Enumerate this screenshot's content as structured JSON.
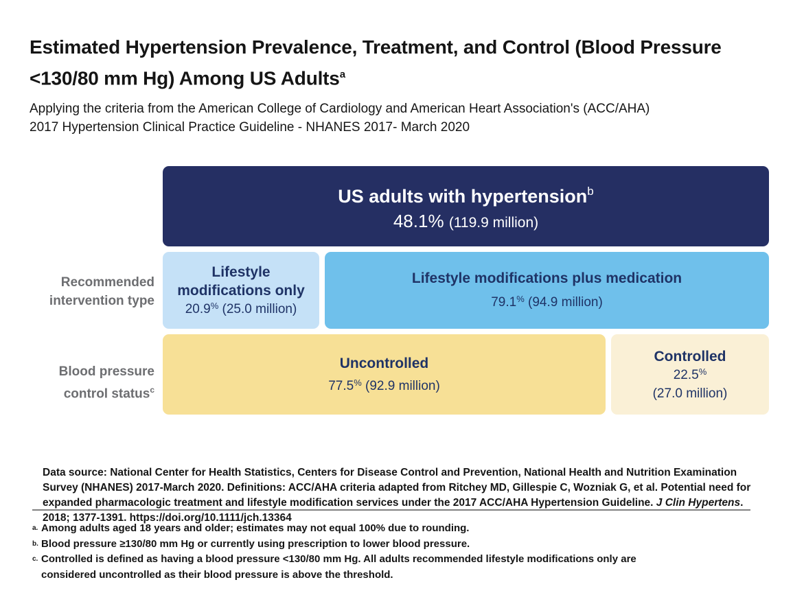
{
  "page": {
    "title": "Estimated Hypertension Prevalence, Treatment, and Control (Blood Pressure <130/80 mm Hg) Among US Adults",
    "title_footnote_mark": "a",
    "subtitle": "Applying the criteria from the American College of Cardiology and American Heart Association's (ACC/AHA) 2017 Hypertension Clinical Practice Guideline - NHANES 2017- March 2020"
  },
  "glyphs": {
    "percent": "%"
  },
  "chart_data": {
    "type": "bar",
    "variant": "hierarchical-breakdown",
    "title": "Estimated Hypertension Prevalence, Treatment, and Control (Blood Pressure <130/80 mm Hg) Among US Adults",
    "population_unit": "US adults",
    "levels": [
      {
        "label": "",
        "segments": [
          {
            "name": "US adults with hypertension",
            "footnote_mark": "b",
            "percent": 48.1,
            "millions": 119.9,
            "pct_display": "48.1",
            "value_display": "(119.9 million)",
            "color": "#252F63"
          }
        ]
      },
      {
        "label": "Recommended intervention type",
        "segments": [
          {
            "name": "Lifestyle modifications only",
            "percent": 20.9,
            "millions": 25.0,
            "pct_display": "20.9",
            "value_display": "(25.0 million)",
            "color": "#C5E1F7"
          },
          {
            "name": "Lifestyle modifications plus medication",
            "percent": 79.1,
            "millions": 94.9,
            "pct_display": "79.1",
            "value_display": "(94.9 million)",
            "color": "#6FC0EB"
          }
        ]
      },
      {
        "label": "Blood pressure control status",
        "footnote_mark": "c",
        "segments": [
          {
            "name": "Uncontrolled",
            "percent": 77.5,
            "millions": 92.9,
            "pct_display": "77.5",
            "value_display": "(92.9 million)",
            "color": "#F7E096"
          },
          {
            "name": "Controlled",
            "percent": 22.5,
            "millions": 27.0,
            "pct_display": "22.5",
            "value_display": "(27.0 million)",
            "color": "#FAF0D6"
          }
        ]
      }
    ],
    "colors": {
      "box_navy": "#252F63",
      "box_light_blue": "#C5E1F7",
      "box_medium_blue": "#6FC0EB",
      "box_yellow": "#F7E096",
      "box_cream": "#FAF0D6",
      "text_navy": "#1F3366",
      "row_label_gray": "#6D6E71"
    }
  },
  "datasource": {
    "part1": "Data source: National Center for Health Statistics, Centers for Disease Control and Prevention, National Health and Nutrition Examination Survey (NHANES) 2017-March 2020. Definitions: ACC/AHA criteria adapted from Ritchey MD, Gillespie C, Wozniak G, et al. Potential need for expanded pharmacologic treatment and lifestyle modification services under the 2017 ACC/AHA Hypertension Guideline. ",
    "journal": "J Clin Hypertens",
    "part2": ". 2018; 1377-1391. https://doi.org/10.1111/jch.13364"
  },
  "footnotes": [
    {
      "marker": "a.",
      "text": "Among adults aged 18 years and older; estimates may not equal 100% due to rounding."
    },
    {
      "marker": "b.",
      "text": "Blood pressure ≥130/80 mm Hg or currently using prescription to lower blood pressure."
    },
    {
      "marker": "c.",
      "text": "Controlled is defined as having a blood pressure <130/80 mm Hg. All adults recommended lifestyle modifications only are considered uncontrolled as their blood pressure is above the threshold."
    }
  ]
}
